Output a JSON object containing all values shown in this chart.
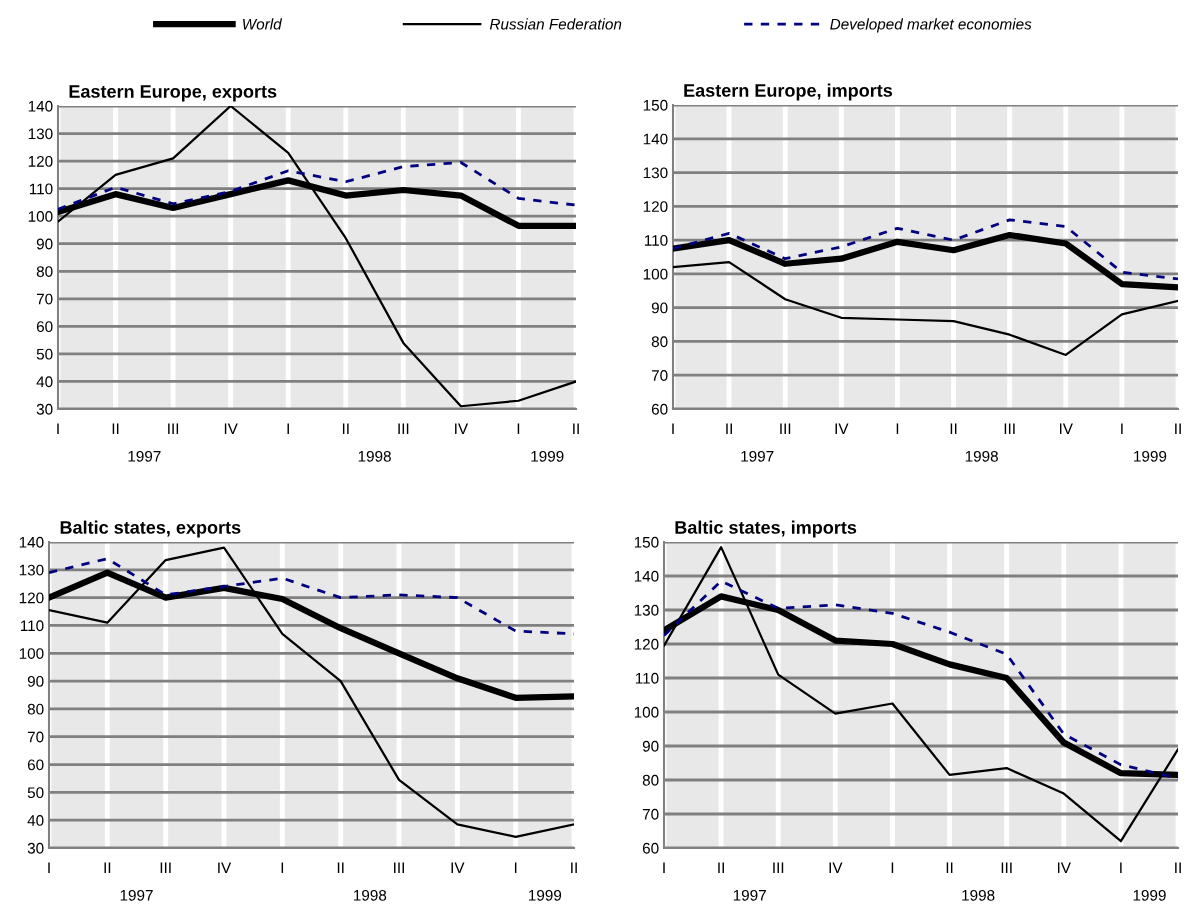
{
  "chart_data": [
    {
      "type": "line",
      "title": "Eastern Europe, exports",
      "categories": [
        "I",
        "II",
        "III",
        "IV",
        "I",
        "II",
        "III",
        "IV",
        "I",
        "II"
      ],
      "ylim": [
        30,
        140
      ],
      "yticks": [
        30,
        40,
        50,
        60,
        70,
        80,
        90,
        100,
        110,
        120,
        130,
        140
      ],
      "grid": true,
      "legend": "top",
      "annotations": [
        "1997",
        "1998",
        "1999"
      ],
      "series": [
        {
          "name": "World",
          "color": "#000000",
          "line_style": "solid",
          "values": [
            101.5,
            108,
            103,
            108,
            113,
            107.5,
            109.5,
            107.5,
            96.5,
            96.5
          ]
        },
        {
          "name": "Russian Federation",
          "color": "#000000",
          "line_style": "solid",
          "values": [
            98,
            115,
            121,
            140,
            123,
            92,
            54,
            31,
            33,
            40
          ]
        },
        {
          "name": "Developed market economies",
          "color": "#000080",
          "line_style": "dashed",
          "values": [
            102.5,
            110.5,
            104.5,
            109,
            116.5,
            112.5,
            118,
            119.5,
            106.5,
            104
          ]
        }
      ]
    },
    {
      "type": "line",
      "title": "Eastern Europe, imports",
      "categories": [
        "I",
        "II",
        "III",
        "IV",
        "I",
        "II",
        "III",
        "IV",
        "I",
        "II"
      ],
      "ylim": [
        60,
        150
      ],
      "yticks": [
        60,
        70,
        80,
        90,
        100,
        110,
        120,
        130,
        140,
        150
      ],
      "grid": true,
      "annotations": [
        "1997",
        "1998",
        "1999"
      ],
      "series": [
        {
          "color": "#000000",
          "line_style": "solid",
          "values": [
            107.5,
            110,
            103,
            104.5,
            109.5,
            107,
            111.5,
            109,
            97,
            96
          ]
        },
        {
          "color": "#000000",
          "line_style": "solid",
          "values": [
            102,
            103.5,
            92.5,
            87,
            86.5,
            86,
            82,
            76,
            88,
            92
          ]
        },
        {
          "color": "#000080",
          "line_style": "dashed",
          "values": [
            107.5,
            112,
            104.5,
            108,
            113.5,
            110,
            116,
            114,
            100.5,
            98.5
          ]
        }
      ]
    },
    {
      "type": "line",
      "title": "Baltic states, exports",
      "categories": [
        "I",
        "II",
        "III",
        "IV",
        "I",
        "II",
        "III",
        "IV",
        "I",
        "II"
      ],
      "ylim": [
        30,
        140
      ],
      "yticks": [
        30,
        40,
        50,
        60,
        70,
        80,
        90,
        100,
        110,
        120,
        130,
        140
      ],
      "grid": true,
      "annotations": [
        "1997",
        "1998",
        "1999"
      ],
      "series": [
        {
          "color": "#000000",
          "line_style": "solid",
          "values": [
            120,
            129,
            120,
            123.5,
            119.5,
            109,
            100,
            91,
            84,
            84.5
          ]
        },
        {
          "color": "#000000",
          "line_style": "solid",
          "values": [
            115.5,
            111,
            133.5,
            138,
            107,
            90,
            54.5,
            38.5,
            34,
            38.5
          ]
        },
        {
          "color": "#000080",
          "line_style": "dashed",
          "values": [
            129,
            134,
            121,
            124,
            127,
            120,
            121,
            120,
            108,
            107
          ]
        }
      ]
    },
    {
      "type": "line",
      "title": "Baltic states, imports",
      "categories": [
        "I",
        "II",
        "III",
        "IV",
        "I",
        "II",
        "III",
        "IV",
        "I",
        "II"
      ],
      "ylim": [
        60,
        150
      ],
      "yticks": [
        60,
        70,
        80,
        90,
        100,
        110,
        120,
        130,
        140,
        150
      ],
      "grid": true,
      "annotations": [
        "1997",
        "1998",
        "1999"
      ],
      "series": [
        {
          "color": "#000000",
          "line_style": "solid",
          "values": [
            124,
            134,
            130,
            121,
            120,
            114,
            110,
            91,
            82,
            81.5
          ]
        },
        {
          "color": "#000000",
          "line_style": "solid",
          "values": [
            119.5,
            148.5,
            111,
            99.5,
            102.5,
            81.5,
            83.5,
            76,
            62,
            89
          ]
        },
        {
          "color": "#000080",
          "line_style": "dashed",
          "values": [
            122.5,
            138.5,
            130.5,
            131.5,
            129,
            123.5,
            117,
            93.5,
            84.5,
            80.5
          ]
        }
      ]
    }
  ]
}
